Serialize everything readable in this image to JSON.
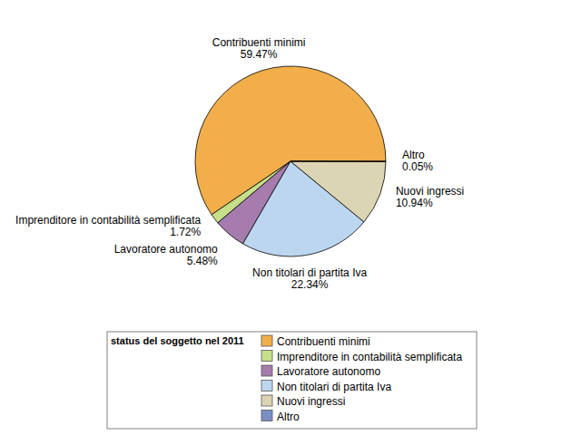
{
  "chart_data": {
    "type": "pie",
    "legend_title": "status del soggetto nel 2011",
    "categories": [
      "Contribuenti minimi",
      "Imprenditore in contabilità semplificata",
      "Lavoratore autonomo",
      "Non titolari di partita Iva",
      "Nuovi ingressi",
      "Altro"
    ],
    "values": [
      59.47,
      1.72,
      5.48,
      22.34,
      10.94,
      0.05
    ],
    "value_labels": [
      "59.47%",
      "1.72%",
      "5.48%",
      "22.34%",
      "10.94%",
      "0.05%"
    ],
    "colors": [
      "#f2ae4a",
      "#c6df8a",
      "#a67cae",
      "#bdd6f0",
      "#dcd5b4",
      "#7b8fc4"
    ],
    "data_labels": true,
    "legend": "bottom"
  }
}
